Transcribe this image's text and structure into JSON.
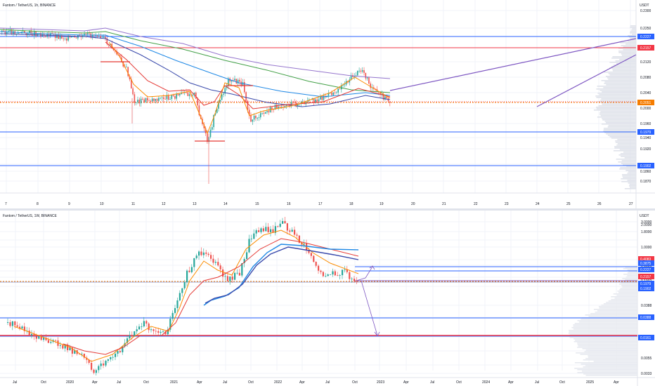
{
  "charts": [
    {
      "title": "Fantom / TetherUS, 1h, BINANCE",
      "currency": "USDT",
      "price_ticks": [
        "0.2300",
        "0.2250",
        "0.2200",
        "0.2160",
        "0.2120",
        "0.2080",
        "0.2040",
        "0.2000",
        "0.1960",
        "0.1940",
        "0.1920",
        "0.1885",
        "0.1860",
        "0.1870"
      ],
      "time_ticks": [
        "7",
        "8",
        "9",
        "10",
        "11",
        "12",
        "13",
        "14",
        "15",
        "16",
        "17",
        "18",
        "19",
        "20",
        "21",
        "22",
        "23",
        "24",
        "25",
        "26",
        "27"
      ],
      "price_tags": [
        {
          "label": "0.2227",
          "color": "#2962ff"
        },
        {
          "label": "0.2157",
          "color": "#f23645"
        },
        {
          "label": "0.2051",
          "color": "#f57c00"
        },
        {
          "label": "0.1979",
          "color": "#2962ff"
        },
        {
          "label": "0.1902",
          "color": "#2962ff"
        }
      ]
    },
    {
      "title": "Fantom / TetherUS, 1W, BINANCE",
      "currency": "USDT",
      "price_ticks": [
        "3.0000",
        "2.0000",
        "1.8000",
        "1.0000",
        "0.4083",
        "0.3875",
        "0.2227",
        "0.2157",
        "0.1979",
        "0.1902",
        "0.0700",
        "0.0388",
        "0.0161",
        "0.0100",
        "0.0055",
        "0.0033"
      ],
      "time_ticks": [
        "Jul",
        "Oct",
        "2020",
        "Apr",
        "Jul",
        "Oct",
        "2021",
        "Apr",
        "Jul",
        "Oct",
        "2022",
        "Apr",
        "Jul",
        "Oct",
        "2023",
        "Apr",
        "Jul",
        "Oct",
        "2024",
        "Apr",
        "Jul",
        "Oct",
        "2025",
        "Apr"
      ],
      "price_tags": [
        {
          "label": "0.4083",
          "color": "#f23645"
        },
        {
          "label": "0.3875",
          "color": "#2962ff"
        },
        {
          "label": "0.2227",
          "color": "#2962ff"
        },
        {
          "label": "0.2157",
          "color": "#f23645"
        },
        {
          "label": "0.1979",
          "color": "#2962ff"
        },
        {
          "label": "0.1902",
          "color": "#2962ff"
        },
        {
          "label": "0.0388",
          "color": "#2962ff"
        },
        {
          "label": "0.0161",
          "color": "#2962ff"
        }
      ]
    }
  ],
  "chart_data": [
    {
      "type": "candlestick",
      "title": "Fantom / TetherUS, 1h, BINANCE",
      "x": [
        "7",
        "8",
        "9",
        "10",
        "11",
        "12",
        "13",
        "14",
        "15",
        "16",
        "17",
        "18",
        "19"
      ],
      "close_approx": [
        0.2243,
        0.2245,
        0.2238,
        0.224,
        0.206,
        0.208,
        0.2,
        0.2085,
        0.204,
        0.205,
        0.206,
        0.2125,
        0.2051
      ],
      "ylim": [
        0.186,
        0.23
      ],
      "horizontal_levels": [
        0.2227,
        0.2157,
        0.2051,
        0.1979,
        0.1902
      ]
    },
    {
      "type": "candlestick",
      "title": "Fantom / TetherUS, 1W, BINANCE",
      "x": [
        "Jul",
        "Oct",
        "2020",
        "Apr",
        "Jul",
        "Oct",
        "2021",
        "Apr",
        "Jul",
        "Oct",
        "2022",
        "Apr",
        "Jul",
        "Oct"
      ],
      "close_approx": [
        0.02,
        0.015,
        0.014,
        0.004,
        0.011,
        0.025,
        0.3,
        0.4,
        0.2,
        2.0,
        2.5,
        0.4,
        0.25,
        0.2
      ],
      "log_scale": true,
      "ylim": [
        0.0033,
        3.0
      ],
      "horizontal_levels": [
        0.4083,
        0.3875,
        0.2227,
        0.2157,
        0.1979,
        0.1902,
        0.0388,
        0.0161
      ]
    }
  ]
}
